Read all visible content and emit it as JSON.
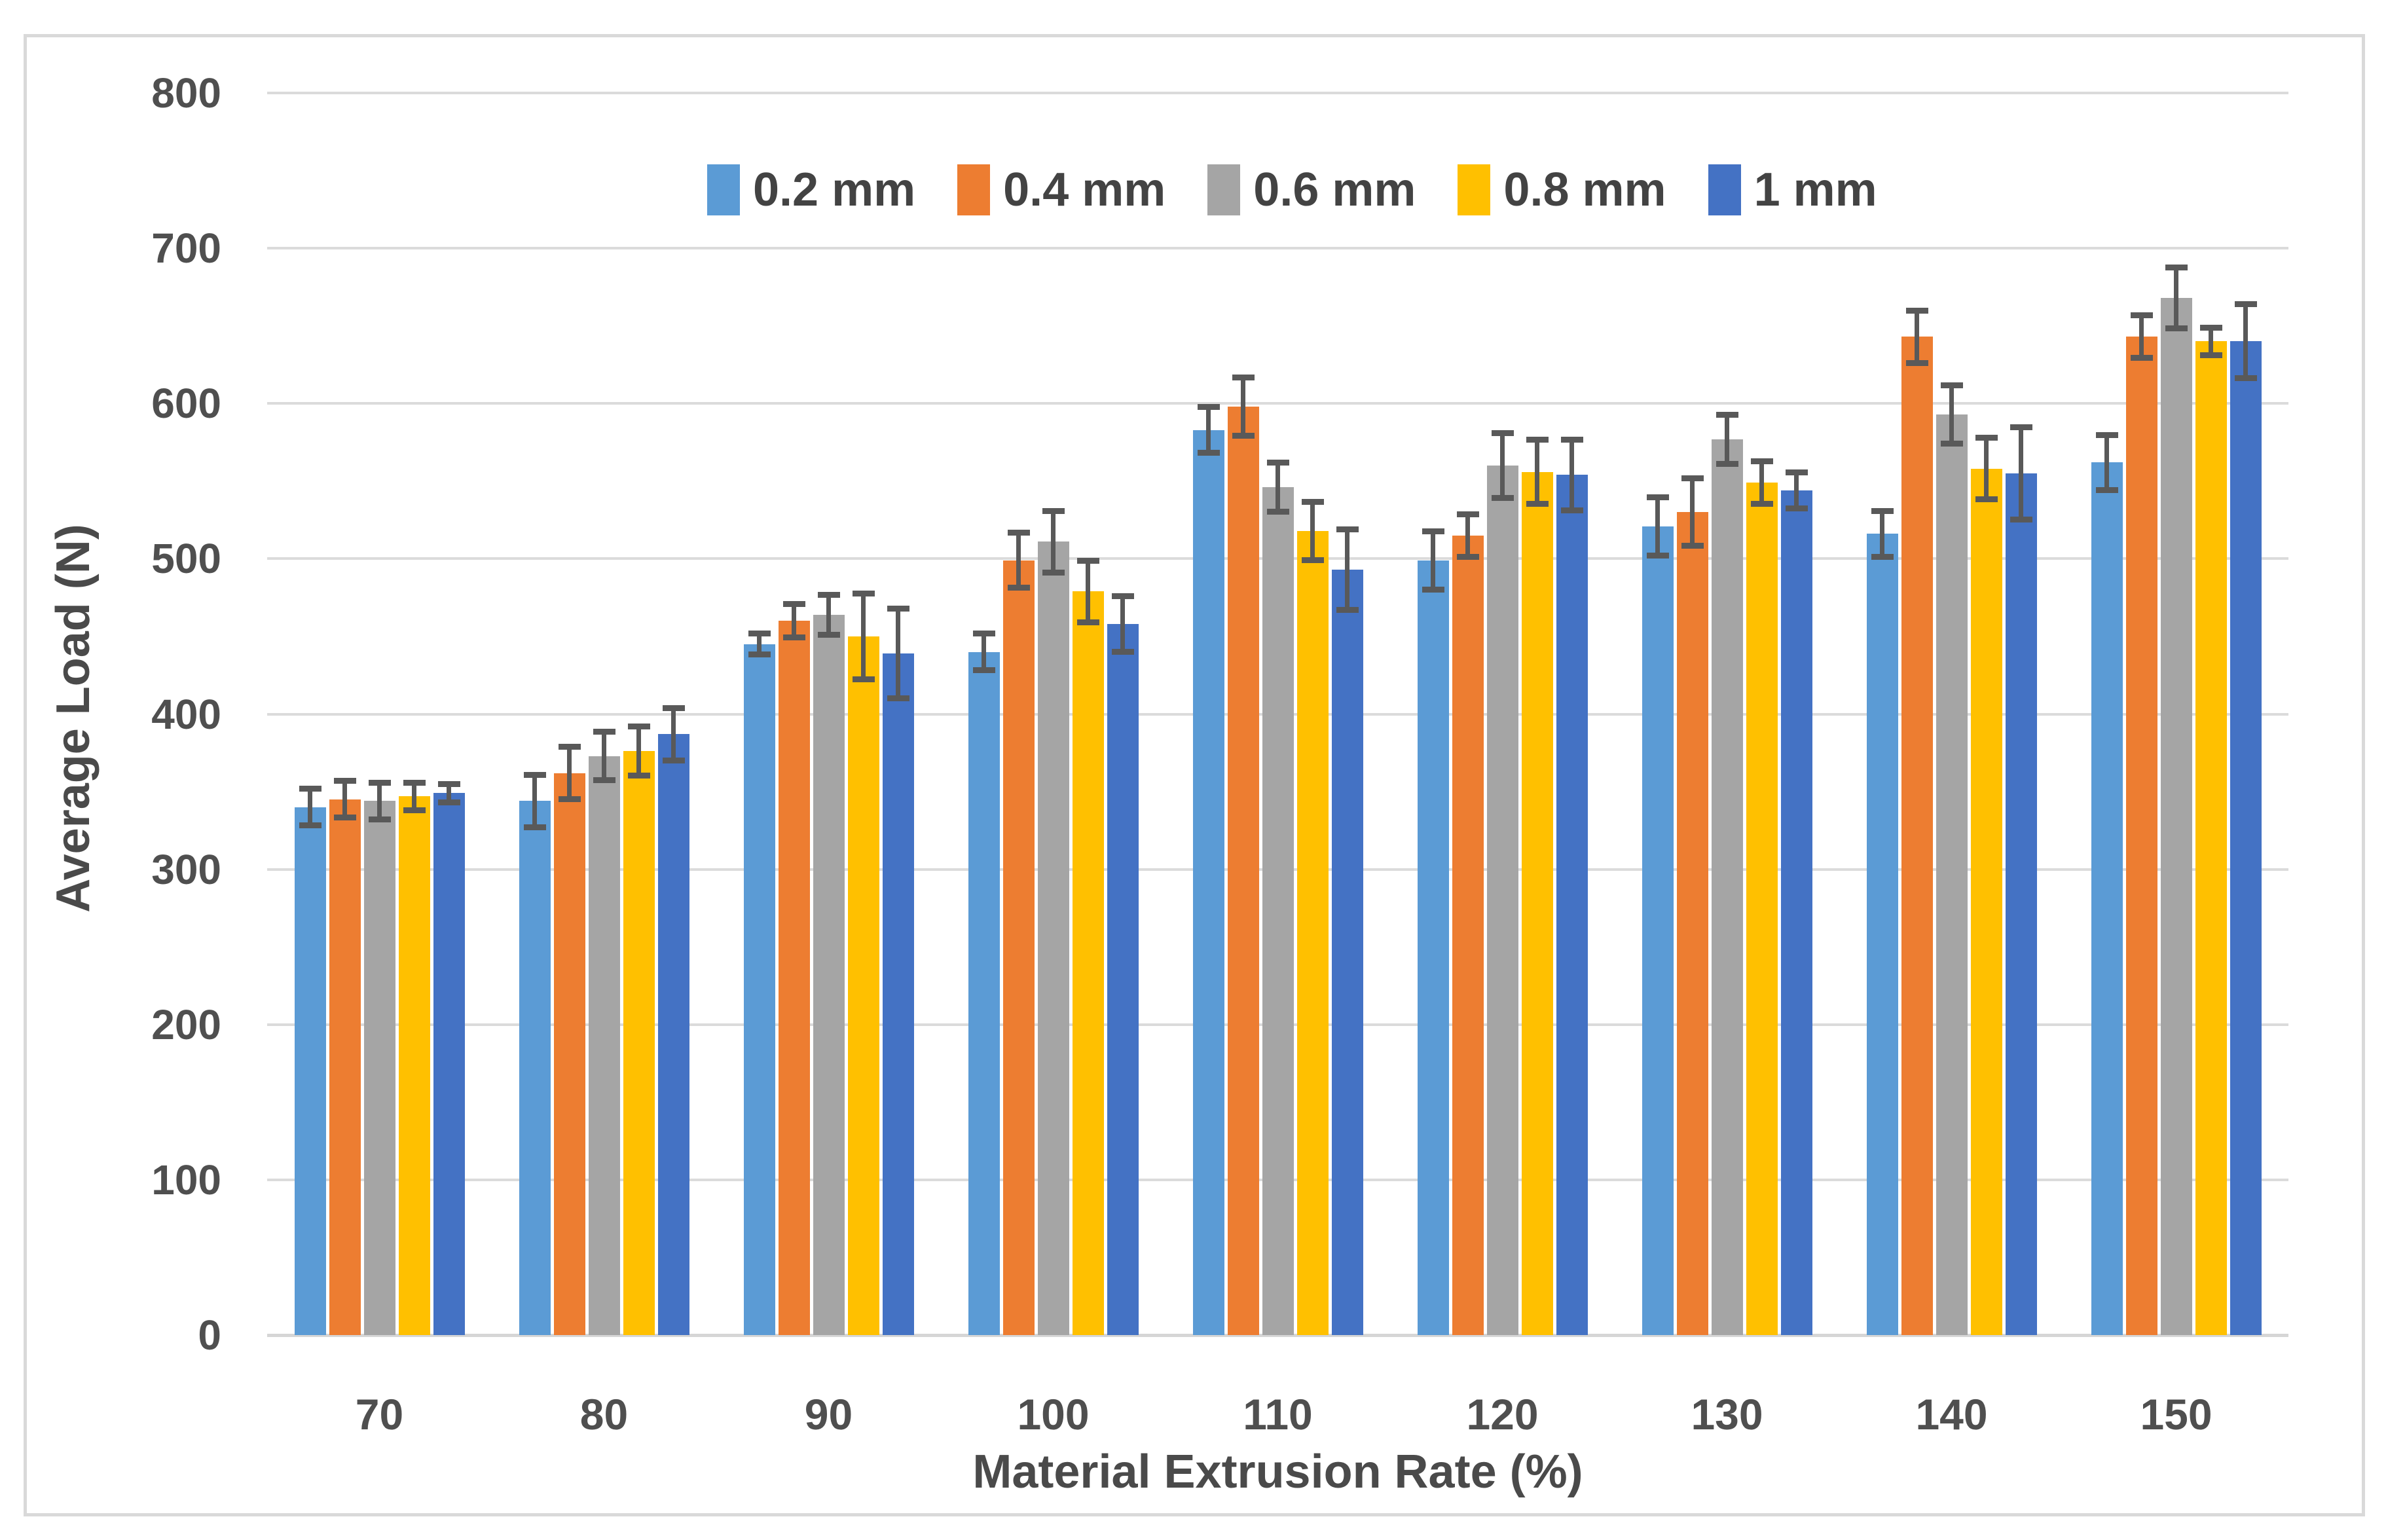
{
  "chart_data": {
    "type": "bar",
    "title": "",
    "xlabel": "Material Extrusion Rate (%)",
    "ylabel": "Average Load (N)",
    "categories": [
      "70",
      "80",
      "90",
      "100",
      "110",
      "120",
      "130",
      "140",
      "150"
    ],
    "y_ticks": [
      0,
      100,
      200,
      300,
      400,
      500,
      600,
      700,
      800
    ],
    "ylim": [
      0,
      800
    ],
    "grid": "horizontal-only",
    "legend_position": "top-center",
    "error_bars": true,
    "series": [
      {
        "name": "0.2 mm",
        "color": "#5B9BD5",
        "values": [
          340,
          344,
          445,
          440,
          583,
          499,
          521,
          516,
          562
        ],
        "errors": [
          12,
          17,
          7,
          12,
          15,
          19,
          19,
          15,
          18
        ]
      },
      {
        "name": "0.4 mm",
        "color": "#ED7D31",
        "values": [
          345,
          362,
          460,
          499,
          598,
          515,
          530,
          643,
          643
        ],
        "errors": [
          12,
          17,
          11,
          18,
          19,
          14,
          22,
          17,
          14
        ]
      },
      {
        "name": "0.6 mm",
        "color": "#A5A5A5",
        "values": [
          344,
          373,
          464,
          511,
          546,
          560,
          577,
          593,
          668
        ],
        "errors": [
          12,
          16,
          13,
          20,
          16,
          21,
          16,
          19,
          20
        ]
      },
      {
        "name": "0.8 mm",
        "color": "#FFC000",
        "values": [
          347,
          376,
          450,
          479,
          518,
          556,
          549,
          558,
          640
        ],
        "errors": [
          9,
          16,
          28,
          20,
          19,
          21,
          14,
          20,
          9
        ]
      },
      {
        "name": "1 mm",
        "color": "#4472C4",
        "values": [
          349,
          387,
          439,
          458,
          493,
          554,
          544,
          555,
          640
        ],
        "errors": [
          6,
          17,
          29,
          18,
          26,
          23,
          12,
          30,
          24
        ]
      }
    ]
  },
  "styles": {
    "background": "#FFFFFF",
    "frame_border_color": "#D9D9D9",
    "grid_color": "#DBDBDB",
    "axis_line_color": "#D6D6D6",
    "tick_text_color": "#4f4f4f",
    "title_text_color": "#4a4a4a",
    "error_bar_color": "#595959"
  }
}
